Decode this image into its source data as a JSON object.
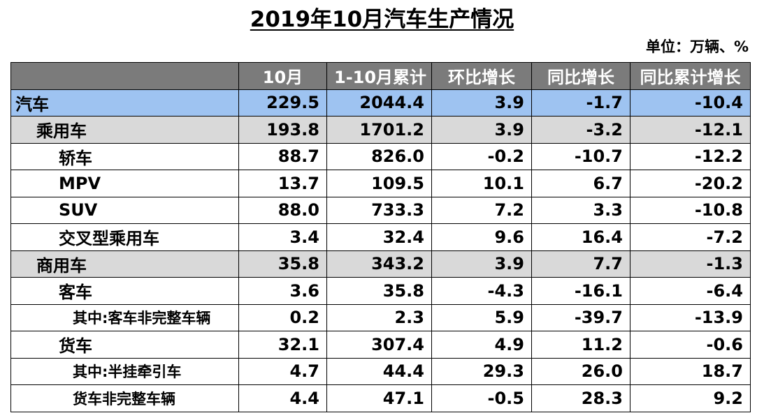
{
  "title": "2019年10月汽车生产情况",
  "unit": "单位：万辆、%",
  "headers": [
    "",
    "10月",
    "1-10月累计",
    "环比增长",
    "同比增长",
    "同比累计增长"
  ],
  "rows": [
    {
      "label": "汽车",
      "values": [
        "229.5",
        "2044.4",
        "3.9",
        "-1.7",
        "-10.4"
      ]
    },
    {
      "label": "乘用车",
      "values": [
        "193.8",
        "1701.2",
        "3.9",
        "-3.2",
        "-12.1"
      ]
    },
    {
      "label": "轿车",
      "values": [
        "88.7",
        "826.0",
        "-0.2",
        "-10.7",
        "-12.2"
      ]
    },
    {
      "label": "MPV",
      "values": [
        "13.7",
        "109.5",
        "10.1",
        "6.7",
        "-20.2"
      ]
    },
    {
      "label": "SUV",
      "values": [
        "88.0",
        "733.3",
        "7.2",
        "3.3",
        "-10.8"
      ]
    },
    {
      "label": "交叉型乘用车",
      "values": [
        "3.4",
        "32.4",
        "9.6",
        "16.4",
        "-7.2"
      ]
    },
    {
      "label": "商用车",
      "values": [
        "35.8",
        "343.2",
        "3.9",
        "7.7",
        "-1.3"
      ]
    },
    {
      "label": "客车",
      "values": [
        "3.6",
        "35.8",
        "-4.3",
        "-16.1",
        "-6.4"
      ]
    },
    {
      "label": "其中:客车非完整车辆",
      "values": [
        "0.2",
        "2.3",
        "5.9",
        "-39.7",
        "-13.9"
      ]
    },
    {
      "label": "货车",
      "values": [
        "32.1",
        "307.4",
        "4.9",
        "11.2",
        "-0.6"
      ]
    },
    {
      "label": "其中:半挂牵引车",
      "values": [
        "4.7",
        "44.4",
        "29.3",
        "26.0",
        "18.7"
      ]
    },
    {
      "label": "货车非完整车辆",
      "values": [
        "4.4",
        "47.1",
        "-0.5",
        "28.3",
        "9.2"
      ]
    }
  ],
  "colors": {
    "header_bg": "#7b7b7b",
    "total_row_bg": "#9ec3f1",
    "subtotal_row_bg": "#d9d9d9"
  }
}
